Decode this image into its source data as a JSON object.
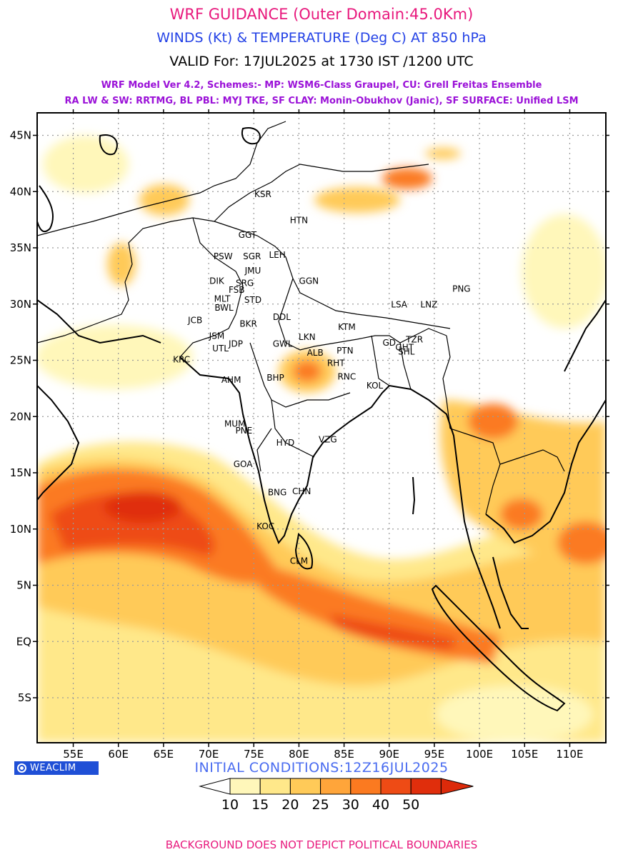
{
  "header": {
    "title": "WRF GUIDANCE (Outer Domain:45.0Km)",
    "subtitle": "WINDS (Kt) & TEMPERATURE (Deg C) AT 850 hPa",
    "valid": "VALID For: 17JUL2025 at 1730 IST /1200 UTC",
    "model_line1": "WRF Model Ver 4.2, Schemes:- MP: WSM6-Class Graupel, CU: Grell Freitas Ensemble",
    "model_line2": "RA LW & SW: RRTMG, BL PBL: MYJ TKE, SF CLAY: Monin-Obukhov (Janic), SF SURFACE: Unified LSM"
  },
  "colors": {
    "title": "#e8197d",
    "subtitle": "#2442e6",
    "valid": "#000000",
    "model": "#9b12d8",
    "init": "#4a6cf0",
    "footer": "#e8197d",
    "badge": "#1f4fd6"
  },
  "map": {
    "lon_range": [
      51,
      114
    ],
    "lat_range": [
      -9,
      47
    ],
    "lon_ticks": [
      {
        "v": 55,
        "label": "55E"
      },
      {
        "v": 60,
        "label": "60E"
      },
      {
        "v": 65,
        "label": "65E"
      },
      {
        "v": 70,
        "label": "70E"
      },
      {
        "v": 75,
        "label": "75E"
      },
      {
        "v": 80,
        "label": "80E"
      },
      {
        "v": 85,
        "label": "85E"
      },
      {
        "v": 90,
        "label": "90E"
      },
      {
        "v": 95,
        "label": "95E"
      },
      {
        "v": 100,
        "label": "100E"
      },
      {
        "v": 105,
        "label": "105E"
      },
      {
        "v": 110,
        "label": "110E"
      }
    ],
    "lat_ticks": [
      {
        "v": 45,
        "label": "45N"
      },
      {
        "v": 40,
        "label": "40N"
      },
      {
        "v": 35,
        "label": "35N"
      },
      {
        "v": 30,
        "label": "30N"
      },
      {
        "v": 25,
        "label": "25N"
      },
      {
        "v": 20,
        "label": "20N"
      },
      {
        "v": 15,
        "label": "15N"
      },
      {
        "v": 10,
        "label": "10N"
      },
      {
        "v": 5,
        "label": "5N"
      },
      {
        "v": 0,
        "label": "EQ"
      },
      {
        "v": -5,
        "label": "5S"
      }
    ],
    "station_labels": [
      {
        "text": "KSR",
        "lon": 76.0,
        "lat": 39.5
      },
      {
        "text": "HTN",
        "lon": 80.0,
        "lat": 37.2
      },
      {
        "text": "GGT",
        "lon": 74.3,
        "lat": 35.9
      },
      {
        "text": "PSW",
        "lon": 71.6,
        "lat": 34.0
      },
      {
        "text": "SGR",
        "lon": 74.8,
        "lat": 34.0
      },
      {
        "text": "LEH",
        "lon": 77.6,
        "lat": 34.1
      },
      {
        "text": "JMU",
        "lon": 74.9,
        "lat": 32.7
      },
      {
        "text": "GGN",
        "lon": 81.1,
        "lat": 31.8
      },
      {
        "text": "DIK",
        "lon": 70.9,
        "lat": 31.8
      },
      {
        "text": "SRG",
        "lon": 74.0,
        "lat": 31.6
      },
      {
        "text": "FSB",
        "lon": 73.1,
        "lat": 31.0
      },
      {
        "text": "MLT",
        "lon": 71.5,
        "lat": 30.2
      },
      {
        "text": "STD",
        "lon": 74.9,
        "lat": 30.1
      },
      {
        "text": "BWL",
        "lon": 71.7,
        "lat": 29.4
      },
      {
        "text": "DDL",
        "lon": 78.1,
        "lat": 28.6
      },
      {
        "text": "JCB",
        "lon": 68.5,
        "lat": 28.3
      },
      {
        "text": "BKR",
        "lon": 74.4,
        "lat": 28.0
      },
      {
        "text": "LSA",
        "lon": 91.1,
        "lat": 29.7
      },
      {
        "text": "LNZ",
        "lon": 94.4,
        "lat": 29.7
      },
      {
        "text": "PNG",
        "lon": 98.0,
        "lat": 31.1
      },
      {
        "text": "KTM",
        "lon": 85.3,
        "lat": 27.7
      },
      {
        "text": "JSM",
        "lon": 70.9,
        "lat": 26.9
      },
      {
        "text": "LKN",
        "lon": 80.9,
        "lat": 26.8
      },
      {
        "text": "GWL",
        "lon": 78.2,
        "lat": 26.2
      },
      {
        "text": "JDP",
        "lon": 73.0,
        "lat": 26.2
      },
      {
        "text": "UTL",
        "lon": 71.3,
        "lat": 25.8
      },
      {
        "text": "ALB",
        "lon": 81.8,
        "lat": 25.4
      },
      {
        "text": "PTN",
        "lon": 85.1,
        "lat": 25.6
      },
      {
        "text": "GD",
        "lon": 90.0,
        "lat": 26.3
      },
      {
        "text": "TZR",
        "lon": 92.8,
        "lat": 26.6
      },
      {
        "text": "GHT",
        "lon": 91.7,
        "lat": 25.9
      },
      {
        "text": "SHL",
        "lon": 91.9,
        "lat": 25.5
      },
      {
        "text": "RHT",
        "lon": 84.1,
        "lat": 24.5
      },
      {
        "text": "KRC",
        "lon": 67.0,
        "lat": 24.8
      },
      {
        "text": "AHM",
        "lon": 72.5,
        "lat": 23.0
      },
      {
        "text": "BHP",
        "lon": 77.4,
        "lat": 23.2
      },
      {
        "text": "RNC",
        "lon": 85.3,
        "lat": 23.3
      },
      {
        "text": "KOL",
        "lon": 88.4,
        "lat": 22.5
      },
      {
        "text": "MUM",
        "lon": 72.9,
        "lat": 19.1
      },
      {
        "text": "PNE",
        "lon": 73.9,
        "lat": 18.5
      },
      {
        "text": "HYD",
        "lon": 78.5,
        "lat": 17.4
      },
      {
        "text": "VZG",
        "lon": 83.2,
        "lat": 17.7
      },
      {
        "text": "GOA",
        "lon": 73.8,
        "lat": 15.5
      },
      {
        "text": "BNG",
        "lon": 77.6,
        "lat": 13.0
      },
      {
        "text": "CHN",
        "lon": 80.3,
        "lat": 13.1
      },
      {
        "text": "KOC",
        "lon": 76.3,
        "lat": 10.0
      },
      {
        "text": "CLM",
        "lon": 80.0,
        "lat": 6.9
      }
    ]
  },
  "legend": {
    "labels": [
      "10",
      "15",
      "20",
      "25",
      "30",
      "40",
      "50"
    ],
    "colors": [
      "#fff7ba",
      "#ffe88a",
      "#ffca58",
      "#ffa53a",
      "#fb7a20",
      "#ee4b15",
      "#e02e0c"
    ]
  },
  "badge": {
    "label": "WEACLIM"
  },
  "footer": {
    "initial": "INITIAL CONDITIONS:12Z16JUL2025",
    "disclaimer": "BACKGROUND DOES NOT DEPICT POLITICAL BOUNDARIES"
  }
}
